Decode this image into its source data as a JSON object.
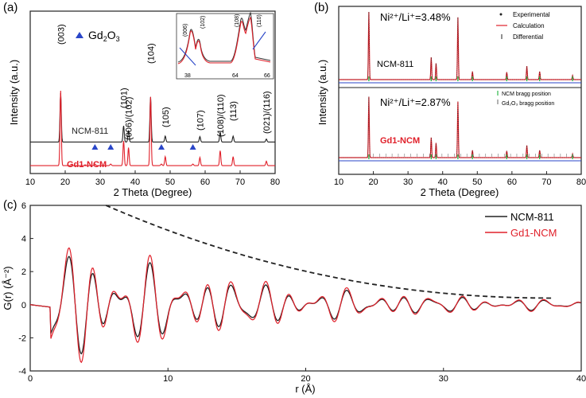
{
  "chart_data": [
    {
      "panel_label": "(a)",
      "type": "line",
      "xlabel": "2 Theta (Degree)",
      "ylabel": "Intensity (a.u.)",
      "xlim": [
        10,
        80
      ],
      "xticks": [
        10,
        20,
        30,
        40,
        50,
        60,
        70,
        80
      ],
      "legend_marker_label": "Gd",
      "legend_marker_sub": "2",
      "legend_marker_label2": "O",
      "legend_marker_sub2": "3",
      "series": [
        {
          "name": "NCM-811",
          "color": "#222222",
          "baseline": 0.4
        },
        {
          "name": "Gd1-NCM",
          "color": "#e0202a",
          "baseline": 0.1
        }
      ],
      "peaks": [
        {
          "x": 18.7,
          "h": 1.0,
          "label": "(003)"
        },
        {
          "x": 36.7,
          "h": 0.33,
          "label": "(101)"
        },
        {
          "x": 38.1,
          "h": 0.24,
          "label": "(006)/(102)"
        },
        {
          "x": 44.4,
          "h": 0.92,
          "label": "(104)"
        },
        {
          "x": 48.6,
          "h": 0.12,
          "label": "(105)"
        },
        {
          "x": 58.5,
          "h": 0.11,
          "label": "(107)"
        },
        {
          "x": 64.3,
          "h": 0.2,
          "label": "(108)/(110)"
        },
        {
          "x": 68.0,
          "h": 0.12,
          "label": "(113)"
        },
        {
          "x": 77.5,
          "h": 0.06,
          "label": "(021)/(116)"
        }
      ],
      "gd2o3_marker_x": [
        28.5,
        33.0,
        47.5,
        56.5
      ],
      "inset_labels": [
        "(006)",
        "(102)",
        "(108)",
        "(110)"
      ],
      "inset_ticks": [
        "38",
        "64",
        "66"
      ]
    },
    {
      "panel_label": "(b)",
      "type": "line",
      "xlabel": "2 Theta (Degree)",
      "ylabel": "Intensity (a.u.)",
      "xlim": [
        10,
        80
      ],
      "xticks": [
        10,
        20,
        30,
        40,
        50,
        60,
        70,
        80
      ],
      "legend": [
        "Experimental",
        "Calculation",
        "Differential"
      ],
      "upper_note": "Ni²⁺/Li⁺=3.48%",
      "lower_note": "Ni²⁺/Li⁺=2.87%",
      "upper_sample": "NCM-811",
      "lower_sample": "Gd1-NCM",
      "bragg_legend": [
        "NCM bragg position",
        "Gd₂O₃ bragg position"
      ]
    },
    {
      "panel_label": "(c)",
      "type": "line",
      "xlabel": "r (Å)",
      "ylabel": "G(r) (Å⁻²)",
      "xlim": [
        0,
        40
      ],
      "ylim": [
        -4,
        6
      ],
      "xticks": [
        0,
        10,
        20,
        30,
        40
      ],
      "yticks": [
        -4,
        -2,
        0,
        2,
        4,
        6
      ],
      "series": [
        {
          "name": "NCM-811",
          "color": "#222222"
        },
        {
          "name": "Gd1-NCM",
          "color": "#e0202a"
        }
      ],
      "envelope": {
        "style": "dashed",
        "x_start": 5.5,
        "y_start": 6.0,
        "x_end": 38.0,
        "y_end": 0.4
      }
    }
  ]
}
